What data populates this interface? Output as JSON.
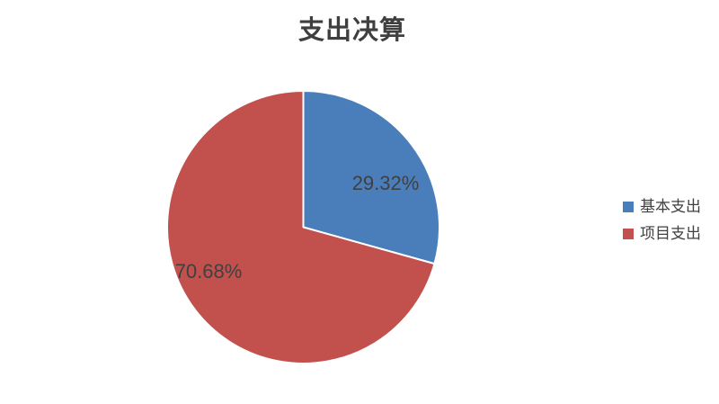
{
  "title": "支出决算",
  "chart_data": {
    "type": "pie",
    "title": "支出决算",
    "categories": [
      "基本支出",
      "项目支出"
    ],
    "values": [
      29.32,
      70.68
    ],
    "data_labels": [
      "29.32%",
      "70.68%"
    ],
    "colors": [
      "#4a7ebb",
      "#c2504d"
    ],
    "slice_border_color": "#ffffff",
    "start_angle_deg": 0,
    "direction": "clockwise",
    "legend_position": "right",
    "label_color": "#404040"
  },
  "legend": {
    "items": [
      {
        "label": "基本支出",
        "color": "#4a7ebb"
      },
      {
        "label": "项目支出",
        "color": "#c2504d"
      }
    ]
  }
}
